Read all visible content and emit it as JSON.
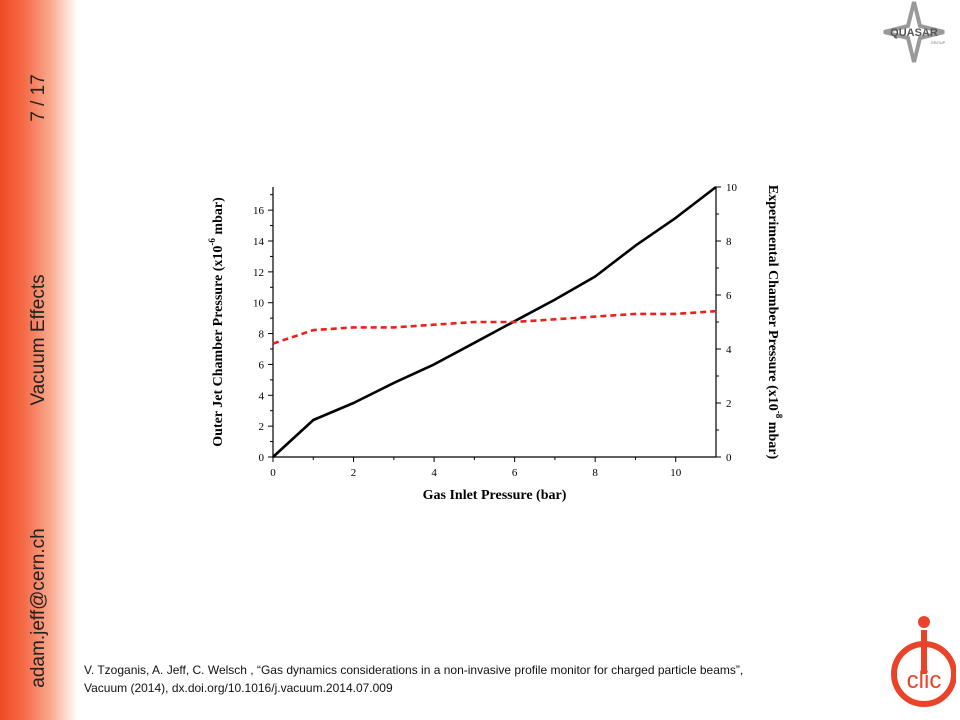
{
  "sidebar": {
    "page_number": "7 / 17",
    "section_title": "Vacuum Effects",
    "author_email": "adam.jeff@cern.ch"
  },
  "logos": {
    "quasar_text": "QUASAR",
    "quasar_sub": "GROUP",
    "clic_text": "clic"
  },
  "citation": {
    "line1": "V. Tzoganis, A. Jeff, C. Welsch , “Gas dynamics considerations in a non-invasive profile monitor for charged particle beams”,",
    "line2": "Vacuum (2014), dx.doi.org/10.1016/j.vacuum.2014.07.009"
  },
  "colors": {
    "sidebar_accent": "#f04a24",
    "black_series": "#000000",
    "red_series": "#e8231d"
  },
  "chart_data": {
    "type": "line",
    "xlabel": "Gas Inlet Pressure (bar)",
    "ylabel_left": {
      "main": "Outer Jet Chamber Pressure (x10",
      "exp": "-6",
      "unit": " mbar)"
    },
    "ylabel_right": {
      "main": "Experimental Chamber Pressure (x10",
      "exp": "-8",
      "unit": " mbar)"
    },
    "xlim": [
      0,
      11
    ],
    "ylim_left": [
      0,
      17.5
    ],
    "ylim_right": [
      0,
      10
    ],
    "x_ticks": [
      0,
      2,
      4,
      6,
      8,
      10
    ],
    "y_left_ticks": [
      0,
      2,
      4,
      6,
      8,
      10,
      12,
      14,
      16
    ],
    "y_right_ticks": [
      0,
      2,
      4,
      6,
      8,
      10
    ],
    "grid": false,
    "series": [
      {
        "axis": "left",
        "style": "solid",
        "color": "#000000",
        "x": [
          0,
          1,
          2,
          3,
          4,
          5,
          6,
          7,
          8,
          9,
          10,
          11
        ],
        "y": [
          0,
          2.4,
          3.5,
          4.8,
          6.0,
          7.4,
          8.8,
          10.2,
          11.7,
          13.7,
          15.5,
          17.5
        ]
      },
      {
        "axis": "right",
        "style": "dashed",
        "color": "#e8231d",
        "x": [
          0,
          1,
          2,
          3,
          4,
          5,
          6,
          7,
          8,
          9,
          10,
          11
        ],
        "y": [
          4.2,
          4.7,
          4.8,
          4.8,
          4.9,
          5.0,
          5.0,
          5.1,
          5.2,
          5.3,
          5.3,
          5.4
        ]
      }
    ]
  }
}
